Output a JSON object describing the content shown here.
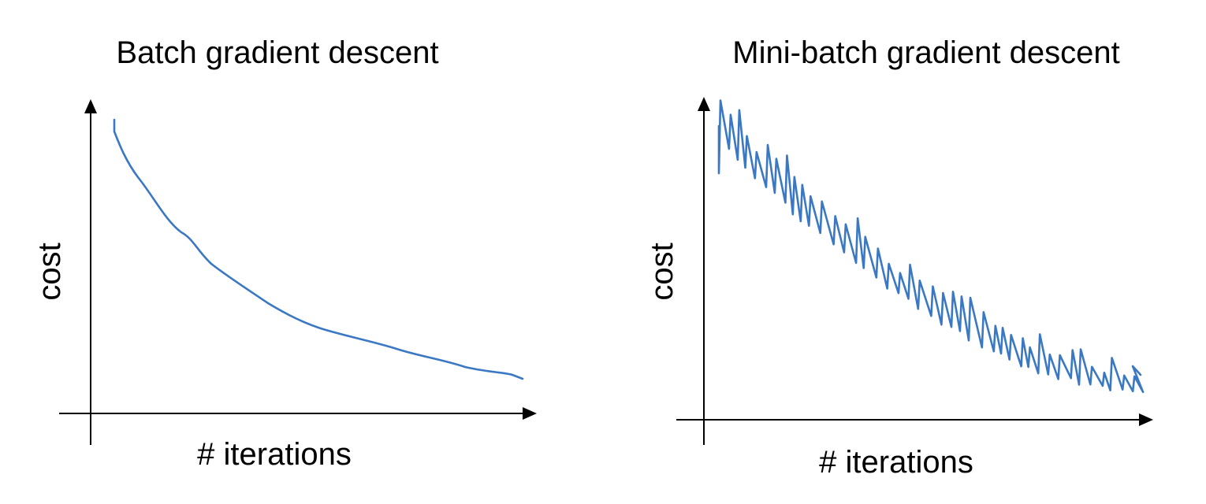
{
  "panels": [
    {
      "title": "Batch gradient descent",
      "y_label": "cost",
      "x_label": "# iterations"
    },
    {
      "title": "Mini-batch gradient descent",
      "y_label": "cost",
      "x_label": "# iterations"
    }
  ]
}
